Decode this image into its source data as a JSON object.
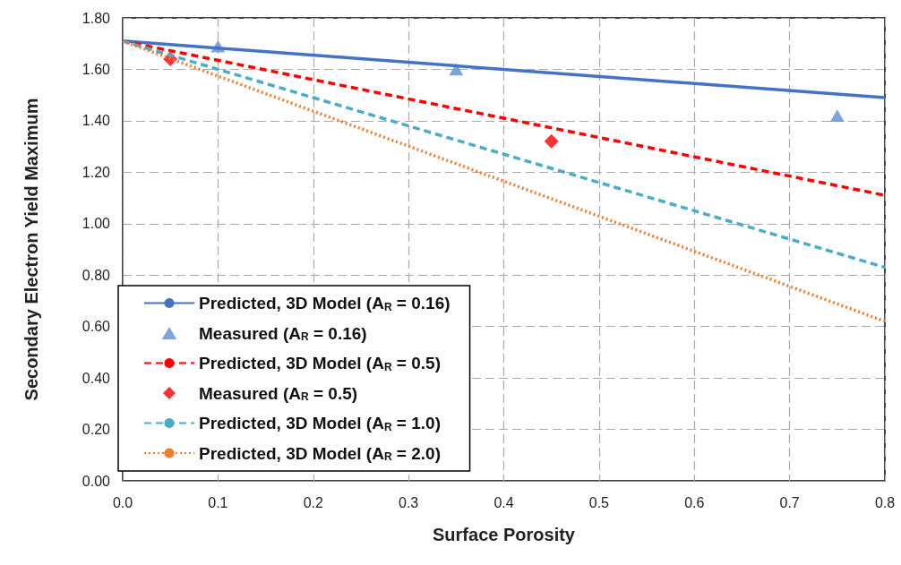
{
  "chart_data": {
    "type": "line",
    "xlabel": "Surface Porosity",
    "ylabel": "Secondary Electron Yield Maximum",
    "xlim": [
      0,
      0.8
    ],
    "xticks": [
      {
        "value": 0,
        "label": "0.0"
      },
      0.1,
      0.2,
      0.3,
      0.4,
      0.5,
      0.6,
      0.7,
      0.8
    ],
    "ylim": [
      0,
      1.8
    ],
    "yticks": [
      {
        "value": 0,
        "label": "0.00"
      },
      {
        "value": 0.2,
        "label": "0.20"
      },
      {
        "value": 0.4,
        "label": "0.40"
      },
      {
        "value": 0.6,
        "label": "0.60"
      },
      {
        "value": 0.8,
        "label": "0.80"
      },
      {
        "value": 1,
        "label": "1.00"
      },
      {
        "value": 1.2,
        "label": "1.20"
      },
      {
        "value": 1.4,
        "label": "1.40"
      },
      {
        "value": 1.6,
        "label": "1.60"
      },
      {
        "value": 1.8,
        "label": "1.80"
      }
    ],
    "grid": true,
    "legend": "bottom left",
    "series": [
      {
        "name": "Predicted, 3D Model (A$_{R}$ = 0.16)",
        "color": "#4472c4",
        "line_style": "solid",
        "marker": "none",
        "x": [
          0,
          0.8
        ],
        "values": [
          1.71,
          1.49
        ]
      },
      {
        "name": "Measured (A$_{R}$ = 0.16)",
        "type": "scatter",
        "color": "#5b8fd0",
        "marker": "triangle",
        "x": [
          0.1,
          0.35,
          0.75
        ],
        "values": [
          1.69,
          1.6,
          1.42
        ]
      },
      {
        "name": "Predicted, 3D Model (A$_{R}$ = 0.5)",
        "color": "#ff0000",
        "line_style": "dashed",
        "marker": "none",
        "x": [
          0,
          0.8
        ],
        "values": [
          1.71,
          1.11
        ]
      },
      {
        "name": "Measured (A$_{R}$ = 0.5)",
        "type": "scatter",
        "color": "#ff0000",
        "marker": "diamond",
        "x": [
          0.05,
          0.45
        ],
        "values": [
          1.64,
          1.32
        ]
      },
      {
        "name": "Predicted, 3D Model (A$_{R}$ = 1.0)",
        "color": "#4bacc6",
        "line_style": "dashed",
        "marker": "none",
        "x": [
          0,
          0.8
        ],
        "values": [
          1.71,
          0.83
        ]
      },
      {
        "name": "Predicted, 3D Model (A$_{R}$ = 2.0)",
        "color": "#ed7d31",
        "line_style": "dotted",
        "marker": "none",
        "x": [
          0,
          0.8
        ],
        "values": [
          1.71,
          0.62
        ]
      }
    ]
  }
}
